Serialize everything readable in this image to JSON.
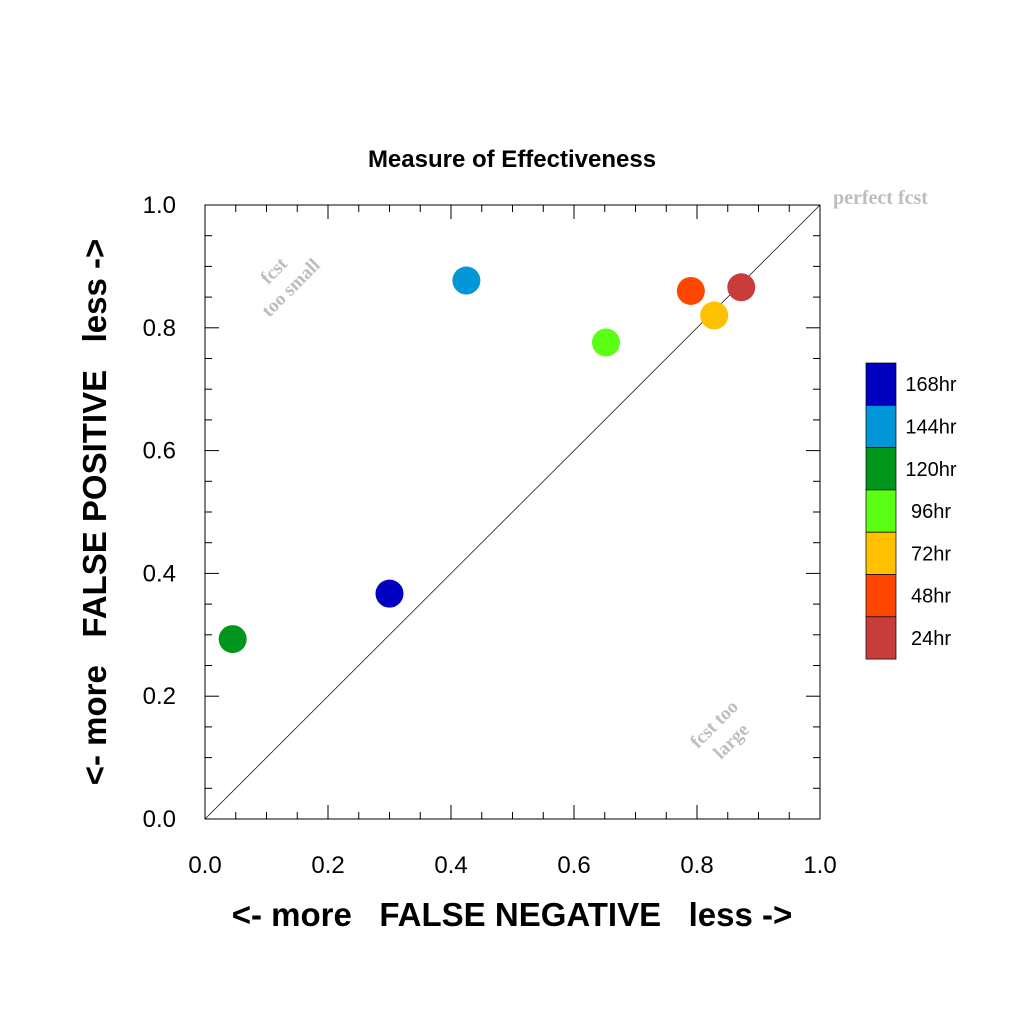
{
  "chart_data": {
    "type": "scatter",
    "title": "Measure of Effectiveness",
    "xlabel": "<- more   FALSE NEGATIVE   less ->",
    "ylabel": "<- more   FALSE POSITIVE   less ->",
    "xlim": [
      0,
      1
    ],
    "ylim": [
      0,
      1
    ],
    "xticks": [
      "0.0",
      "0.2",
      "0.4",
      "0.6",
      "0.8",
      "1.0"
    ],
    "yticks": [
      "0.0",
      "0.2",
      "0.4",
      "0.6",
      "0.8",
      "1.0"
    ],
    "grid": false,
    "legend_position": "right",
    "diagonal_reference_line": true,
    "annotations": {
      "perfect": "perfect fcst",
      "too_small_line1": "fcst",
      "too_small_line2": "too small",
      "too_large_line1": "fcst too",
      "too_large_line2": "large"
    },
    "series": [
      {
        "name": "168hr",
        "color": "#0000c0",
        "x": 0.3,
        "y": 0.367
      },
      {
        "name": "144hr",
        "color": "#0096d8",
        "x": 0.425,
        "y": 0.877
      },
      {
        "name": "120hr",
        "color": "#00961e",
        "x": 0.045,
        "y": 0.293
      },
      {
        "name": "96hr",
        "color": "#5aff14",
        "x": 0.652,
        "y": 0.776
      },
      {
        "name": "72hr",
        "color": "#ffc000",
        "x": 0.828,
        "y": 0.82
      },
      {
        "name": "48hr",
        "color": "#ff4600",
        "x": 0.79,
        "y": 0.86
      },
      {
        "name": "24hr",
        "color": "#c83c3c",
        "x": 0.872,
        "y": 0.866
      }
    ]
  }
}
